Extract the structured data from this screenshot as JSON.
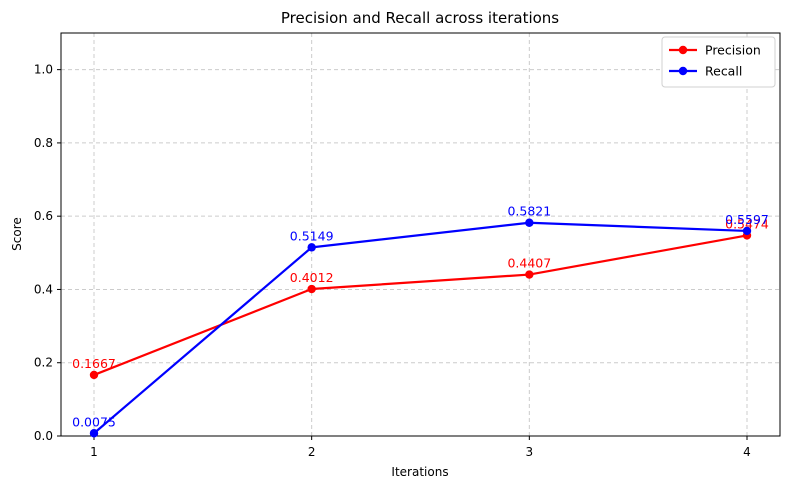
{
  "chart_data": {
    "type": "line",
    "title": "Precision and Recall across iterations",
    "xlabel": "Iterations",
    "ylabel": "Score",
    "x": [
      1,
      2,
      3,
      4
    ],
    "x_tick_labels": [
      "1",
      "2",
      "3",
      "4"
    ],
    "ylim": [
      0,
      1.1
    ],
    "y_ticks": [
      0.0,
      0.2,
      0.4,
      0.6,
      0.8,
      1.0
    ],
    "y_tick_labels": [
      "0.0",
      "0.2",
      "0.4",
      "0.6",
      "0.8",
      "1.0"
    ],
    "grid": true,
    "legend_position": "top-right",
    "series": [
      {
        "name": "Precision",
        "color": "#ff0000",
        "values": [
          0.1667,
          0.4012,
          0.4407,
          0.5474
        ],
        "data_labels": [
          "0.1667",
          "0.4012",
          "0.4407",
          "0.5474"
        ]
      },
      {
        "name": "Recall",
        "color": "#0000ff",
        "values": [
          0.0075,
          0.5149,
          0.5821,
          0.5597
        ],
        "data_labels": [
          "0.0075",
          "0.5149",
          "0.5821",
          "0.5597"
        ]
      }
    ]
  }
}
